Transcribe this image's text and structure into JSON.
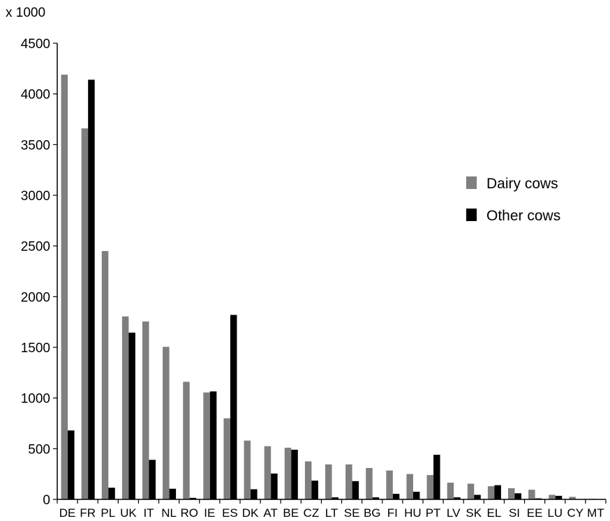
{
  "chart_data": {
    "type": "bar",
    "ylabel": "x 1000",
    "ylim": [
      0,
      4500
    ],
    "yticks": [
      0,
      500,
      1000,
      1500,
      2000,
      2500,
      3000,
      3500,
      4000,
      4500
    ],
    "grid": false,
    "legend_position": "right",
    "categories": [
      "DE",
      "FR",
      "PL",
      "UK",
      "IT",
      "NL",
      "RO",
      "IE",
      "ES",
      "DK",
      "AT",
      "BE",
      "CZ",
      "LT",
      "SE",
      "BG",
      "FI",
      "HU",
      "PT",
      "LV",
      "SK",
      "EL",
      "SI",
      "EE",
      "LU",
      "CY",
      "MT"
    ],
    "series": [
      {
        "name": "Dairy cows",
        "color": "#7f7f7f",
        "values": [
          4190,
          3660,
          2450,
          1805,
          1755,
          1505,
          1160,
          1055,
          800,
          580,
          525,
          510,
          375,
          345,
          345,
          310,
          285,
          250,
          240,
          165,
          155,
          130,
          110,
          95,
          45,
          25,
          5
        ]
      },
      {
        "name": "Other cows",
        "color": "#000000",
        "values": [
          680,
          4140,
          115,
          1645,
          390,
          105,
          15,
          1065,
          1820,
          100,
          255,
          490,
          185,
          20,
          180,
          20,
          55,
          75,
          440,
          20,
          45,
          140,
          60,
          10,
          35,
          0,
          0
        ]
      }
    ]
  }
}
